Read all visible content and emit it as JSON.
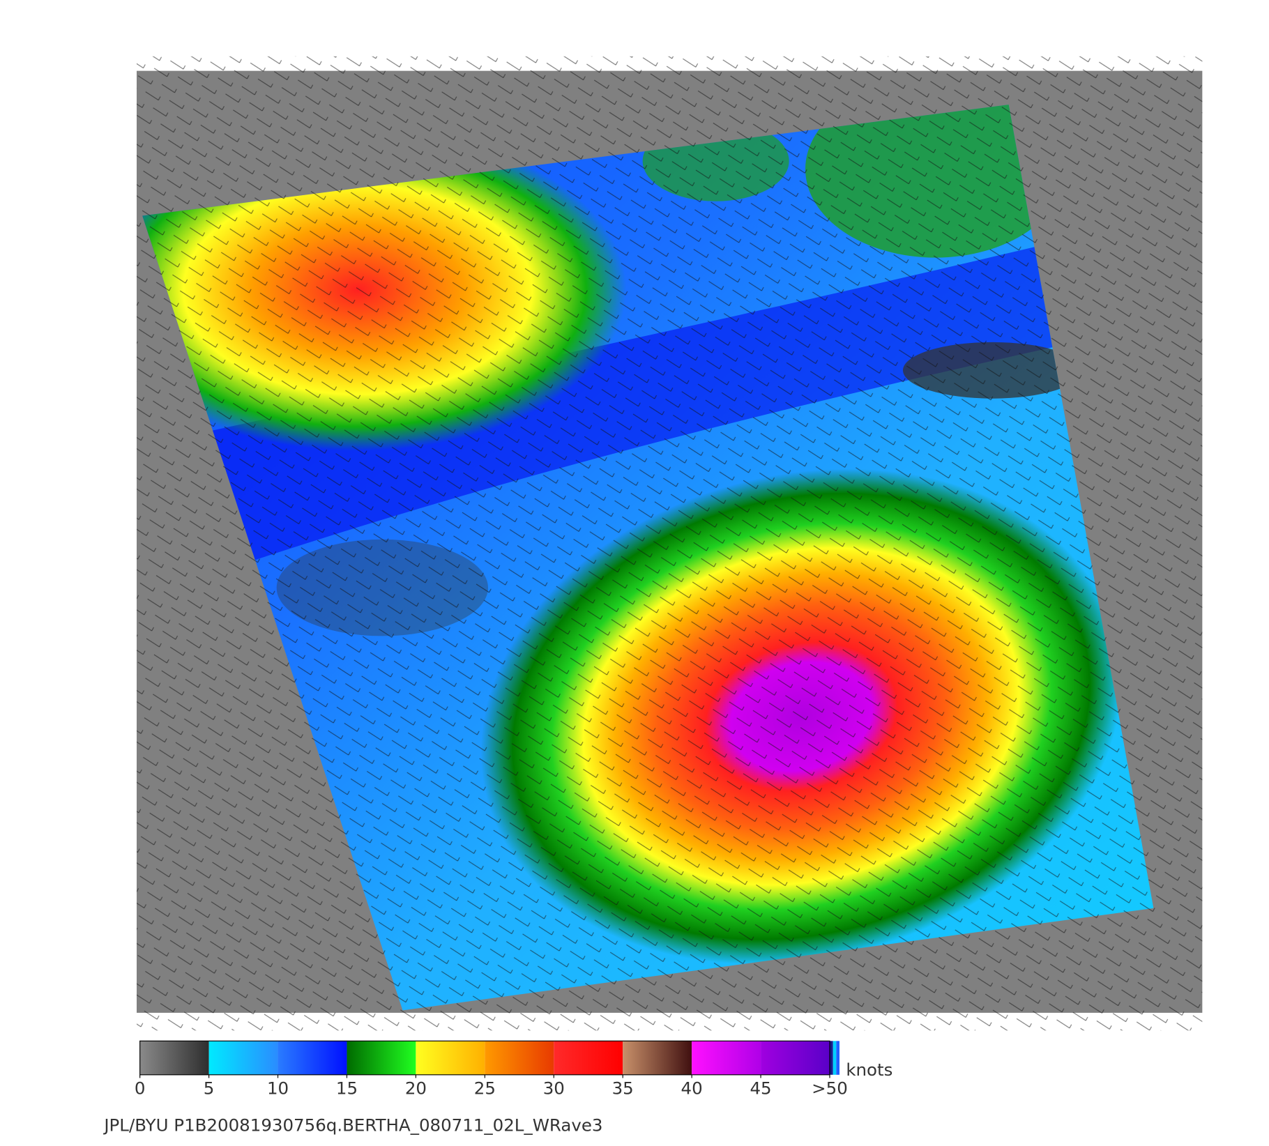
{
  "colorbar": {
    "ticks": [
      0,
      5,
      10,
      15,
      20,
      25,
      30,
      35,
      40,
      45,
      {
        "value": 50,
        "label": ">50"
      }
    ],
    "unit": "knots",
    "colors": [
      [
        "#8a8a8a",
        "#2e2e2e"
      ],
      [
        "#00eaff",
        "#2a8cff"
      ],
      [
        "#2a7cff",
        "#0010ff"
      ],
      [
        "#006a00",
        "#20ff20"
      ],
      [
        "#ffff20",
        "#ffb000"
      ],
      [
        "#ff9a00",
        "#e83a00"
      ],
      [
        "#ff2a2a",
        "#ff0000"
      ],
      [
        "#c8906a",
        "#401010"
      ],
      [
        "#ff10ff",
        "#b000e8"
      ],
      [
        "#a000e0",
        "#5a00c8"
      ]
    ]
  },
  "footer": "JPL/BYU  P1B20081930756q.BERTHA_080711_02L_WRave3"
}
